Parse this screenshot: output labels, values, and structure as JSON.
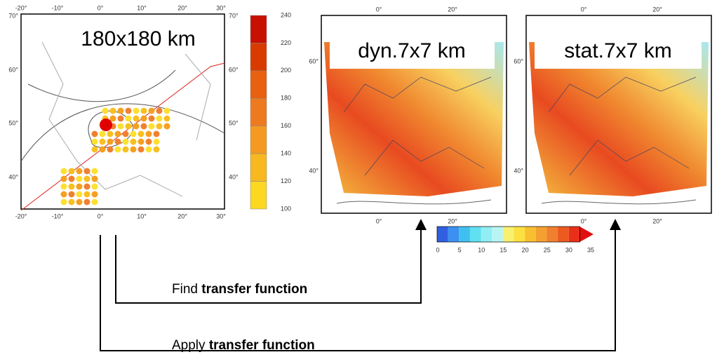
{
  "left_map": {
    "label": "180x180 km",
    "top_ticks": [
      "-20°",
      "-10°",
      "0°",
      "10°",
      "20°",
      "30°"
    ],
    "left_ticks": [
      "70°",
      "60°",
      "50°",
      "40°"
    ],
    "right_ticks": [
      "70°",
      "60°",
      "50°",
      "40°"
    ],
    "bottom_ticks": [
      "-20°",
      "-10°",
      "0°",
      "10°",
      "20°",
      "30°"
    ]
  },
  "left_colorbar": {
    "ticks": [
      240,
      220,
      200,
      180,
      160,
      140,
      120,
      100
    ]
  },
  "dyn_map": {
    "label": "dyn.7x7 km",
    "top_ticks": [
      "0°",
      "20°"
    ],
    "left_ticks": [
      "60°",
      "40°"
    ],
    "bottom_ticks": [
      "0°",
      "20°"
    ]
  },
  "stat_map": {
    "label": "stat.7x7 km",
    "top_ticks": [
      "0°",
      "20°"
    ],
    "left_ticks": [
      "60°",
      "40°"
    ],
    "bottom_ticks": [
      "0°",
      "20°"
    ]
  },
  "bottom_colorbar": {
    "ticks": [
      0,
      5,
      10,
      15,
      20,
      25,
      30,
      35
    ]
  },
  "arrows": [
    {
      "prefix": "Find",
      "bold": "transfer function"
    },
    {
      "prefix": "Apply",
      "bold": "transfer function"
    }
  ]
}
